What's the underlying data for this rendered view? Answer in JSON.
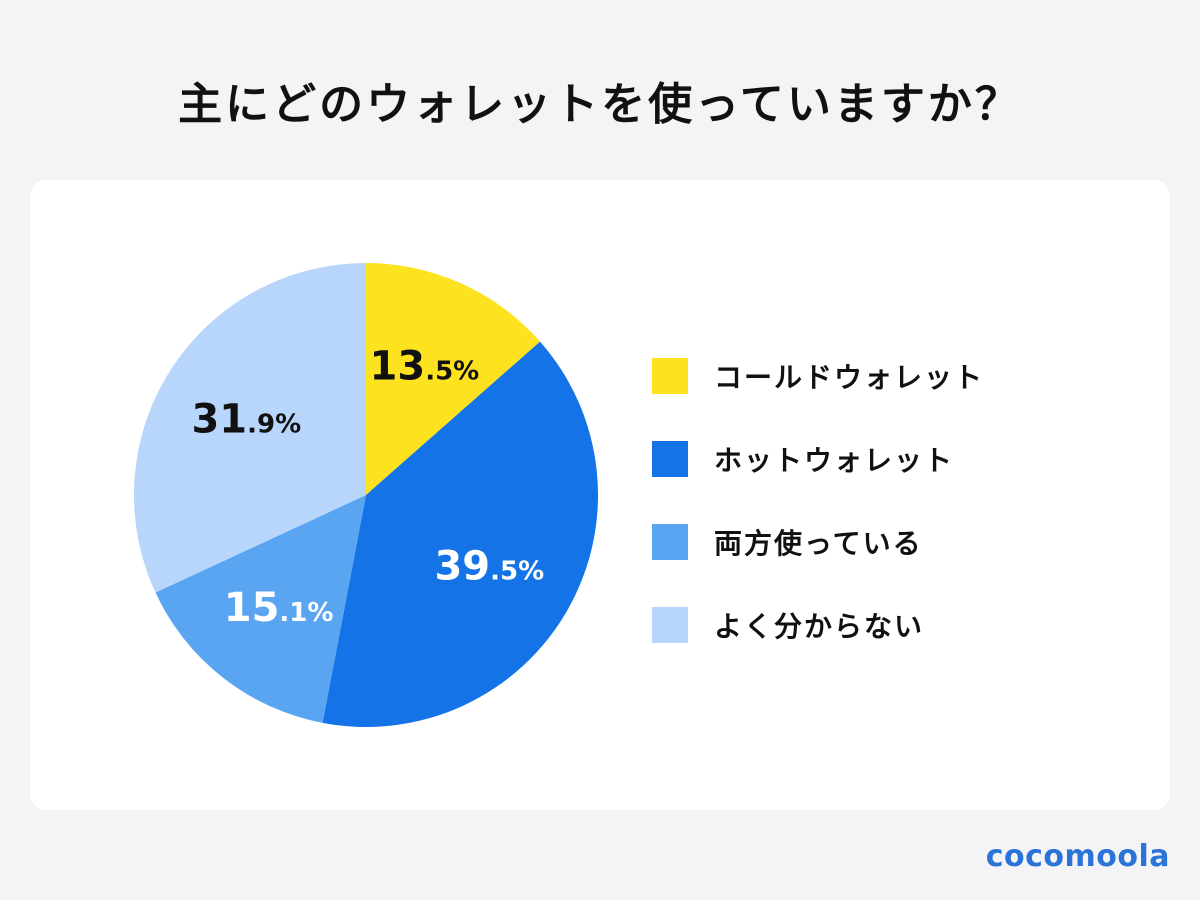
{
  "chart_data": {
    "type": "pie",
    "title": "主にどのウォレットを使っていますか？",
    "unit": "%",
    "start_angle_deg": 0,
    "direction": "clockwise",
    "slices": [
      {
        "label": "コールドウォレット",
        "value": 13.5,
        "int_part": "13",
        "dec_part": ".5%",
        "color": "#fde21f",
        "text_color": "#111111"
      },
      {
        "label": "ホットウォレット",
        "value": 39.5,
        "int_part": "39",
        "dec_part": ".5%",
        "color": "#1473e6",
        "text_color": "#ffffff"
      },
      {
        "label": "両方使っている",
        "value": 15.1,
        "int_part": "15",
        "dec_part": ".1%",
        "color": "#5aa5f2",
        "text_color": "#ffffff"
      },
      {
        "label": "よく分からない",
        "value": 31.9,
        "int_part": "31",
        "dec_part": ".9%",
        "color": "#b8d6fb",
        "text_color": "#111111"
      }
    ],
    "legend_position": "right"
  },
  "brand": {
    "logo_text": "cocomoola"
  }
}
